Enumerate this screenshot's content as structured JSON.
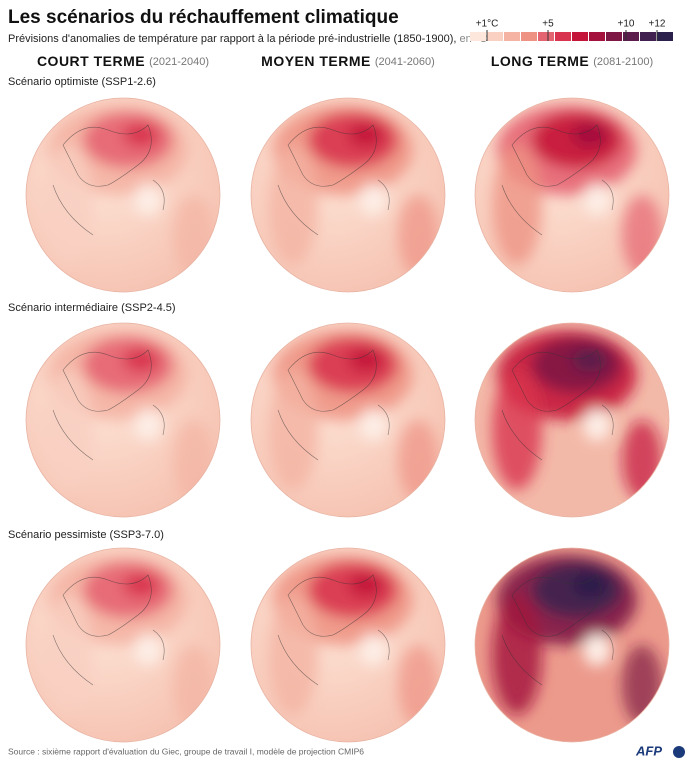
{
  "header": {
    "title": "Les scénarios du réchauffement climatique",
    "subtitle": "Prévisions d'anomalies de température par rapport à la période pré-industrielle (1850-1900),",
    "subtitle_unit": "en °C"
  },
  "legend": {
    "labels": [
      "+1°C",
      "+5",
      "+10",
      "+12"
    ]
  },
  "columns": [
    {
      "label": "COURT TERME",
      "period": "(2021-2040)"
    },
    {
      "label": "MOYEN TERME",
      "period": "(2041-2060)"
    },
    {
      "label": "LONG TERME",
      "period": "(2081-2100)"
    }
  ],
  "rows": [
    {
      "label": "Scénario optimiste (SSP1-2.6)"
    },
    {
      "label": "Scénario intermédiaire (SSP2-4.5)"
    },
    {
      "label": "Scénario pessimiste (SSP3-7.0)"
    }
  ],
  "footer": {
    "source": "Source : sixième rapport d'évaluation du Giec, groupe de travail I, modèle de projection CMIP6",
    "logo": "AFP"
  }
}
